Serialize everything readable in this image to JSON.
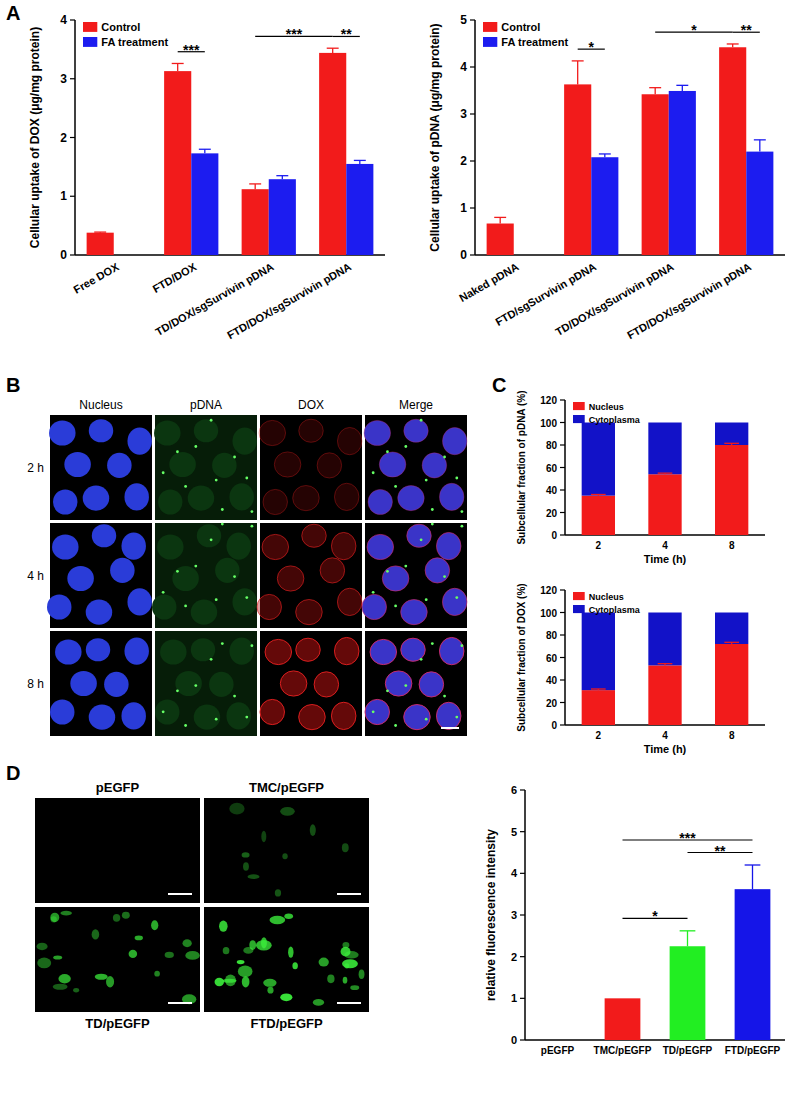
{
  "panel_labels": [
    "A",
    "B",
    "C",
    "D"
  ],
  "chart_data": [
    {
      "type": "bar",
      "y_label": "Cellular uptake of DOX (μg/mg protein)",
      "categories": [
        "Free DOX",
        "FTD/DOX",
        "TD/DOX/sgSurvivin pDNA",
        "FTD/DOX/sgSurvivin pDNA"
      ],
      "series": [
        {
          "name": "Control",
          "color": "#f21b1b",
          "values": [
            0.38,
            3.13,
            1.12,
            3.44
          ],
          "errors": [
            0.01,
            0.13,
            0.09,
            0.08
          ]
        },
        {
          "name": "FA treatment",
          "color": "#1c1cf0",
          "values": [
            null,
            1.73,
            1.29,
            1.55
          ],
          "errors": [
            null,
            0.07,
            0.06,
            0.06
          ]
        }
      ],
      "ylim": [
        0,
        4
      ],
      "yticks": [
        0,
        1,
        2,
        3,
        4
      ],
      "legend": "upper-left",
      "annotations": [
        {
          "text": "***",
          "from": [
            "FTD/DOX",
            "Control"
          ],
          "to": [
            "FTD/DOX",
            "FA treatment"
          ]
        },
        {
          "text": "***",
          "from": [
            "TD/DOX/sgSurvivin pDNA",
            "Control"
          ],
          "to": [
            "FTD/DOX/sgSurvivin pDNA",
            "Control"
          ]
        },
        {
          "text": "**",
          "from": [
            "FTD/DOX/sgSurvivin pDNA",
            "Control"
          ],
          "to": [
            "FTD/DOX/sgSurvivin pDNA",
            "FA treatment"
          ]
        }
      ]
    },
    {
      "type": "bar",
      "y_label": "Cellular uptake of pDNA (μg/mg protein)",
      "categories": [
        "Naked pDNA",
        "FTD/sgSurvivin pDNA",
        "TD/DOX/sgSurvivin pDNA",
        "FTD/DOX/sgSurvivin pDNA"
      ],
      "series": [
        {
          "name": "Control",
          "color": "#f21b1b",
          "values": [
            0.67,
            3.63,
            3.42,
            4.42
          ],
          "errors": [
            0.13,
            0.5,
            0.14,
            0.07
          ]
        },
        {
          "name": "FA treatment",
          "color": "#1c1cf0",
          "values": [
            null,
            2.08,
            3.49,
            2.2
          ],
          "errors": [
            null,
            0.07,
            0.12,
            0.25
          ]
        }
      ],
      "ylim": [
        0,
        5
      ],
      "yticks": [
        0,
        1,
        2,
        3,
        4,
        5
      ],
      "legend": "upper-left",
      "annotations": [
        {
          "text": "*",
          "from": [
            "FTD/sgSurvivin pDNA",
            "Control"
          ],
          "to": [
            "FTD/sgSurvivin pDNA",
            "FA treatment"
          ]
        },
        {
          "text": "*",
          "from": [
            "TD/DOX/sgSurvivin pDNA",
            "Control"
          ],
          "to": [
            "FTD/DOX/sgSurvivin pDNA",
            "Control"
          ]
        },
        {
          "text": "**",
          "from": [
            "FTD/DOX/sgSurvivin pDNA",
            "Control"
          ],
          "to": [
            "FTD/DOX/sgSurvivin pDNA",
            "FA treatment"
          ]
        }
      ]
    },
    {
      "type": "bar",
      "stacked": true,
      "x_label": "Time (h)",
      "y_label": "Subcellular fraction of pDNA (%)",
      "categories": [
        "2",
        "4",
        "8"
      ],
      "series": [
        {
          "name": "Nucleus",
          "color": "#f21b1b",
          "values": [
            35,
            54,
            80
          ],
          "errors": [
            1,
            1,
            1.5
          ]
        },
        {
          "name": "Cytoplasma",
          "color": "#1212c8",
          "values": [
            65,
            46,
            20
          ]
        }
      ],
      "ylim": [
        0,
        120
      ],
      "yticks": [
        0,
        20,
        40,
        60,
        80,
        100,
        120
      ],
      "legend": "upper-left"
    },
    {
      "type": "bar",
      "stacked": true,
      "x_label": "Time (h)",
      "y_label": "Subcellular fraction of DOX (%)",
      "categories": [
        "2",
        "4",
        "8"
      ],
      "series": [
        {
          "name": "Nucleus",
          "color": "#f21b1b",
          "values": [
            31,
            53,
            72
          ],
          "errors": [
            1,
            1.5,
            1.5
          ]
        },
        {
          "name": "Cytoplasma",
          "color": "#1212c8",
          "values": [
            69,
            47,
            28
          ]
        }
      ],
      "ylim": [
        0,
        120
      ],
      "yticks": [
        0,
        20,
        40,
        60,
        80,
        100,
        120
      ],
      "legend": "upper-left"
    },
    {
      "type": "bar",
      "y_label": "relative fluorescence intensity",
      "categories": [
        "pEGFP",
        "TMC/pEGFP",
        "TD/pEGFP",
        "FTD/pEGFP"
      ],
      "values": [
        0,
        1.0,
        2.25,
        3.62
      ],
      "errors": [
        0,
        0,
        0.37,
        0.58
      ],
      "colors": [
        "#f21b1b",
        "#f21b1b",
        "#22ee22",
        "#1515e8"
      ],
      "ylim": [
        0,
        6
      ],
      "yticks": [
        0,
        1,
        2,
        3,
        4,
        5,
        6
      ],
      "annotations": [
        {
          "text": "*",
          "from": [
            "TMC/pEGFP"
          ],
          "to": [
            "TD/pEGFP"
          ]
        },
        {
          "text": "**",
          "from": [
            "TD/pEGFP"
          ],
          "to": [
            "FTD/pEGFP"
          ]
        },
        {
          "text": "***",
          "from": [
            "TMC/pEGFP"
          ],
          "to": [
            "FTD/pEGFP"
          ]
        }
      ]
    }
  ],
  "panel_b": {
    "columns": [
      "Nucleus",
      "pDNA",
      "DOX",
      "Merge"
    ],
    "rows": [
      "2 h",
      "4 h",
      "8 h"
    ]
  },
  "panel_d": {
    "images": [
      "pEGFP",
      "TMC/pEGFP",
      "TD/pEGFP",
      "FTD/pEGFP"
    ]
  }
}
